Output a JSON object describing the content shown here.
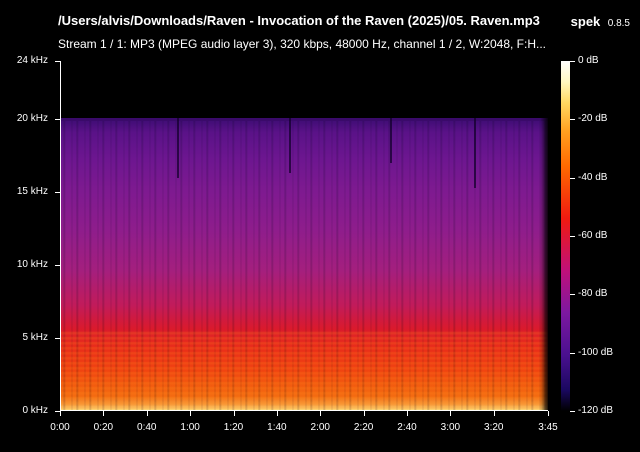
{
  "window": {
    "file_path": "/Users/alvis/Downloads/Raven - Invocation of the Raven (2025)/05. Raven.mp3",
    "app_name": "spek",
    "app_version": "0.8.5",
    "stream_info": "Stream 1 / 1: MP3 (MPEG audio layer 3), 320 kbps, 48000 Hz, channel 1 / 2, W:2048, F:H..."
  },
  "spectrogram": {
    "y_axis_labels": [
      "24 kHz",
      "20 kHz",
      "15 kHz",
      "10 kHz",
      "5 kHz",
      "0 kHz"
    ],
    "y_axis_values_khz": [
      24,
      20,
      15,
      10,
      5,
      0
    ],
    "x_axis_labels": [
      "0:00",
      "0:20",
      "0:40",
      "1:00",
      "1:20",
      "1:40",
      "2:00",
      "2:20",
      "2:40",
      "3:00",
      "3:20",
      "3:45"
    ],
    "x_axis_values_sec": [
      0,
      20,
      40,
      60,
      80,
      100,
      120,
      140,
      160,
      180,
      200,
      225
    ],
    "duration_sec": 225,
    "max_freq_khz": 24,
    "cutoff_khz": 20
  },
  "colorbar": {
    "labels": [
      "0 dB",
      "-20 dB",
      "-40 dB",
      "-60 dB",
      "-80 dB",
      "-100 dB",
      "-120 dB"
    ],
    "values_db": [
      0,
      -20,
      -40,
      -60,
      -80,
      -100,
      -120
    ]
  },
  "colors": {
    "background": "#000000",
    "text": "#ffffff"
  }
}
